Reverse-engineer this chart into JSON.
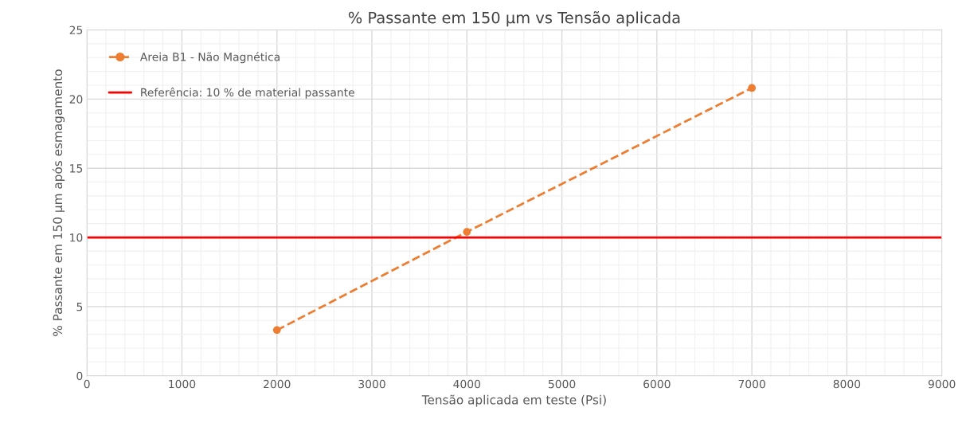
{
  "chart_data": {
    "type": "line",
    "title": "% Passante em 150 µm vs Tensão aplicada",
    "xlabel": "Tensão aplicada em teste (Psi)",
    "ylabel": "% Passante em 150 µm após esmagamento",
    "x": [
      2000,
      4000,
      7000
    ],
    "series": [
      {
        "name": "Areia B1 - Não Magnética",
        "color": "#ed7d31",
        "values": [
          3.3,
          10.4,
          20.8
        ]
      }
    ],
    "marker": "circle",
    "line_style": "dashed",
    "ref_lines": [
      {
        "axis": "y",
        "value": 10,
        "label": "Referência: 10 % de material passante",
        "color": "#ff0000",
        "line_style": "solid"
      }
    ],
    "xlim": [
      0,
      9000
    ],
    "xticks": [
      0,
      1000,
      2000,
      3000,
      4000,
      5000,
      6000,
      7000,
      8000,
      9000
    ],
    "ylim": [
      0,
      25
    ],
    "yticks": [
      0,
      5,
      10,
      15,
      20,
      25
    ],
    "grid": true,
    "legend": "top left"
  }
}
